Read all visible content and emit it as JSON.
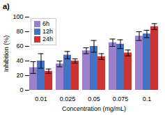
{
  "chart_data": {
    "type": "bar",
    "title": "a)",
    "xlabel": "Concentration (mg/mL)",
    "ylabel": "Inhibition (%)",
    "categories": [
      "0.01",
      "0.025",
      "0.05",
      "0.075",
      "0.1"
    ],
    "series": [
      {
        "name": "6h",
        "color": "#9B80CC",
        "values": [
          31,
          36,
          54,
          65,
          74
        ],
        "errors": [
          8,
          4,
          4,
          5,
          6
        ]
      },
      {
        "name": "12h",
        "color": "#4472C4",
        "values": [
          40,
          48,
          60,
          63,
          77
        ],
        "errors": [
          10,
          5,
          8,
          6,
          5
        ]
      },
      {
        "name": "24h",
        "color": "#CC3333",
        "values": [
          26,
          40,
          46,
          51,
          87
        ],
        "errors": [
          3,
          3,
          4,
          4,
          4
        ]
      }
    ],
    "ylim": [
      0,
      100
    ],
    "yticks": [
      0,
      20,
      40,
      60,
      80,
      100
    ],
    "legend": "upper left",
    "grid": false
  }
}
